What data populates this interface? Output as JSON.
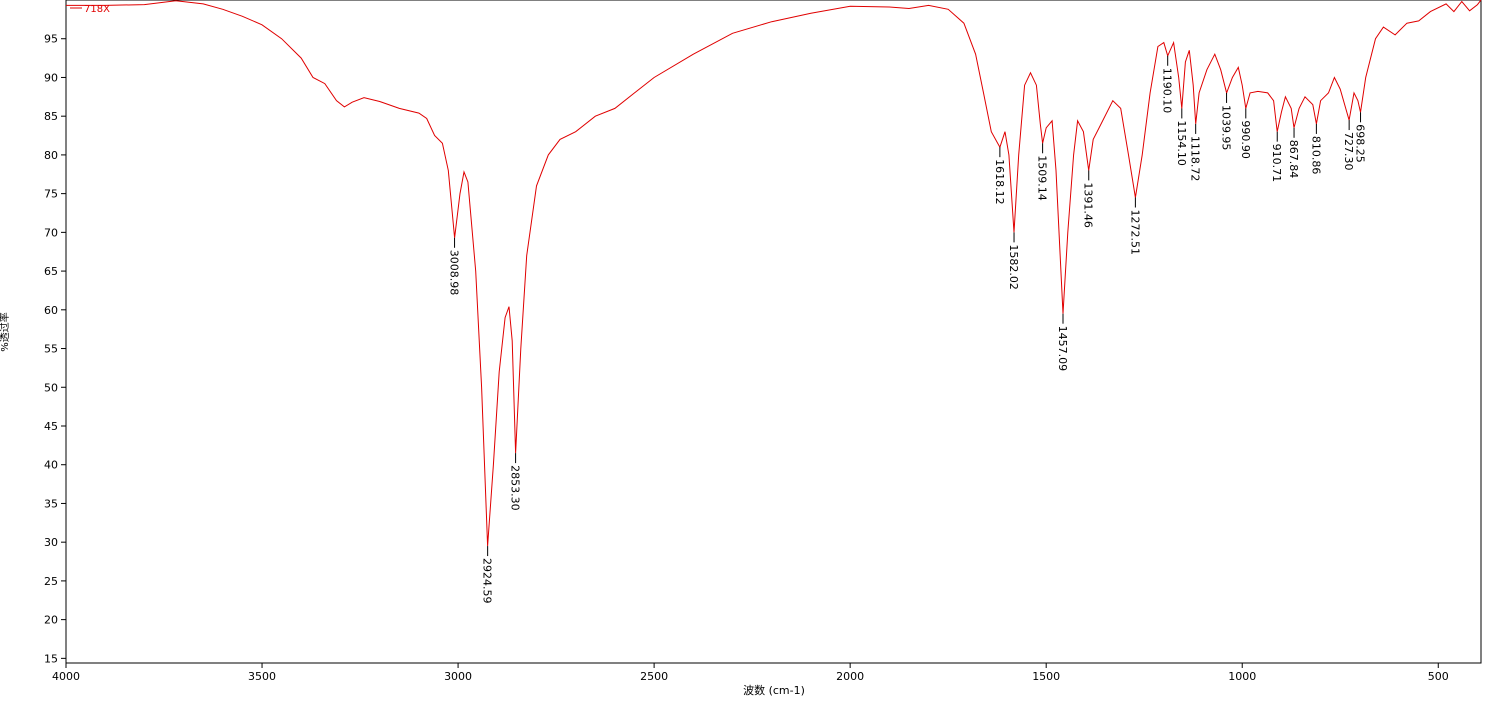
{
  "chart_data": {
    "type": "line",
    "xlabel": "波数 (cm-1)",
    "ylabel": "%透过率",
    "xlim": [
      4000,
      391
    ],
    "ylim": [
      14.4,
      100
    ],
    "xticks": [
      4000,
      3500,
      3000,
      2500,
      2000,
      1500,
      1000,
      500
    ],
    "yticks": [
      15,
      20,
      25,
      30,
      35,
      40,
      45,
      50,
      55,
      60,
      65,
      70,
      75,
      80,
      85,
      90,
      95
    ],
    "series": [
      {
        "name": "718X",
        "color": "#e00000",
        "x": [
          4000,
          3900,
          3800,
          3720,
          3650,
          3600,
          3550,
          3500,
          3450,
          3400,
          3370,
          3340,
          3310,
          3290,
          3270,
          3240,
          3200,
          3150,
          3100,
          3080,
          3060,
          3040,
          3025,
          3008.98,
          2995,
          2985,
          2975,
          2955,
          2940,
          2924.59,
          2910,
          2895,
          2880,
          2870,
          2862,
          2853.3,
          2840,
          2825,
          2800,
          2770,
          2740,
          2700,
          2650,
          2600,
          2550,
          2500,
          2400,
          2300,
          2200,
          2100,
          2000,
          1900,
          1850,
          1800,
          1750,
          1710,
          1680,
          1660,
          1640,
          1618.12,
          1605,
          1595,
          1582.02,
          1570,
          1555,
          1540,
          1525,
          1515,
          1509.14,
          1500,
          1485,
          1475,
          1457.09,
          1445,
          1430,
          1420,
          1405,
          1391.46,
          1380,
          1360,
          1330,
          1310,
          1290,
          1272.51,
          1255,
          1235,
          1215,
          1200,
          1190.1,
          1175,
          1162,
          1154.1,
          1145,
          1135,
          1125,
          1118.72,
          1110,
          1090,
          1070,
          1055,
          1039.95,
          1025,
          1010,
          1000,
          990.9,
          980,
          960,
          935,
          920,
          910.71,
          900,
          890,
          875,
          867.84,
          855,
          840,
          820,
          810.86,
          800,
          780,
          765,
          750,
          727.3,
          715,
          705,
          698.25,
          685,
          660,
          640,
          610,
          580,
          550,
          520,
          480,
          460,
          440,
          420,
          400,
          391
        ],
        "values": [
          99.3,
          99.3,
          99.4,
          99.9,
          99.5,
          98.8,
          97.9,
          96.8,
          95,
          92.5,
          90,
          89.2,
          87,
          86.2,
          86.8,
          87.4,
          86.9,
          86,
          85.4,
          84.7,
          82.5,
          81.5,
          78,
          69.3,
          75,
          77.8,
          76.5,
          65,
          50,
          29.5,
          40,
          52,
          59,
          60.4,
          56,
          41.5,
          55,
          67,
          76,
          80,
          82,
          83,
          85,
          86,
          88,
          90,
          93,
          95.7,
          97.2,
          98.3,
          99.2,
          99.1,
          98.9,
          99.3,
          98.8,
          97,
          93,
          88,
          83,
          81,
          83,
          80,
          70,
          80,
          89,
          90.6,
          89,
          84,
          81.5,
          83.5,
          84.4,
          78,
          59.5,
          70,
          80,
          84.4,
          83,
          78,
          82,
          84,
          87,
          86,
          80,
          74.5,
          80,
          88,
          94,
          94.5,
          92.8,
          94.5,
          90,
          86,
          92,
          93.5,
          89,
          84,
          88,
          91,
          93,
          91,
          88,
          90,
          91.3,
          89,
          86,
          88,
          88.2,
          88,
          87,
          83,
          85.5,
          87.5,
          86,
          83.5,
          86,
          87.5,
          86.5,
          84,
          87,
          88,
          90,
          88.5,
          84.5,
          88,
          87,
          85.5,
          90,
          95,
          96.5,
          95.5,
          97,
          97.3,
          98.5,
          99.5,
          98.5,
          99.8,
          98.6,
          99.4,
          100
        ]
      }
    ],
    "peaks": {
      "x": [
        3008.98,
        2924.59,
        2853.3,
        1618.12,
        1582.02,
        1509.14,
        1457.09,
        1391.46,
        1272.51,
        1190.1,
        1154.1,
        1118.72,
        1039.95,
        990.9,
        910.71,
        867.84,
        810.86,
        727.3,
        698.25
      ],
      "y": [
        69.3,
        29.5,
        41.5,
        81,
        70,
        81.5,
        59.5,
        78,
        74.5,
        92.8,
        86,
        84,
        88,
        86,
        83,
        83.5,
        84,
        84.5,
        85.5
      ],
      "value_labels": [
        "3008.98",
        "2924.59",
        "2853.30",
        "1618.12",
        "1582.02",
        "1509.14",
        "1457.09",
        "1391.46",
        "1272.51",
        "1190.10",
        "1154.10",
        "1118.72",
        "1039.95",
        "990.90",
        "910.71",
        "867.84",
        "810.86",
        "727.30",
        "698.25"
      ]
    }
  }
}
